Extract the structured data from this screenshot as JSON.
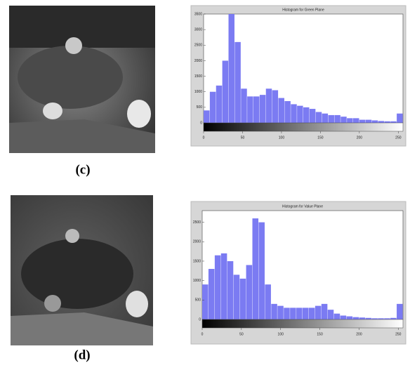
{
  "chart_data": [
    {
      "type": "histogram",
      "title": "Histogram for Green Plane",
      "bins": [
        0,
        8,
        16,
        24,
        32,
        40,
        48,
        56,
        64,
        72,
        80,
        88,
        96,
        104,
        112,
        120,
        128,
        136,
        144,
        152,
        160,
        168,
        176,
        184,
        192,
        200,
        208,
        216,
        224,
        232,
        240,
        248,
        256
      ],
      "counts": [
        400,
        1000,
        1200,
        2000,
        3500,
        2600,
        1100,
        850,
        850,
        900,
        1100,
        1050,
        800,
        700,
        600,
        550,
        500,
        450,
        350,
        300,
        250,
        250,
        200,
        150,
        150,
        100,
        100,
        80,
        60,
        50,
        50,
        300
      ],
      "color": "#7b7bf2",
      "xlim": [
        0,
        256
      ],
      "ylim": [
        0,
        3500
      ],
      "xticks": [
        0,
        50,
        100,
        150,
        200,
        250
      ],
      "yticks": [
        0,
        500,
        1000,
        1500,
        2000,
        2500,
        3000,
        3500
      ]
    },
    {
      "type": "histogram",
      "title": "Histogram for Value Plane",
      "bins": [
        0,
        8,
        16,
        24,
        32,
        40,
        48,
        56,
        64,
        72,
        80,
        88,
        96,
        104,
        112,
        120,
        128,
        136,
        144,
        152,
        160,
        168,
        176,
        184,
        192,
        200,
        208,
        216,
        224,
        232,
        240,
        248,
        256
      ],
      "counts": [
        900,
        1300,
        1650,
        1700,
        1500,
        1150,
        1050,
        1400,
        2600,
        2500,
        900,
        400,
        350,
        300,
        300,
        300,
        300,
        300,
        350,
        400,
        250,
        150,
        100,
        80,
        60,
        50,
        40,
        30,
        30,
        30,
        40,
        400
      ],
      "color": "#7b7bf2",
      "xlim": [
        0,
        256
      ],
      "ylim": [
        0,
        2800
      ],
      "xticks": [
        0,
        50,
        100,
        150,
        200,
        250
      ],
      "yticks": [
        0,
        500,
        1000,
        1500,
        2000,
        2500
      ]
    }
  ],
  "captions": [
    "(c)",
    "(d)"
  ]
}
